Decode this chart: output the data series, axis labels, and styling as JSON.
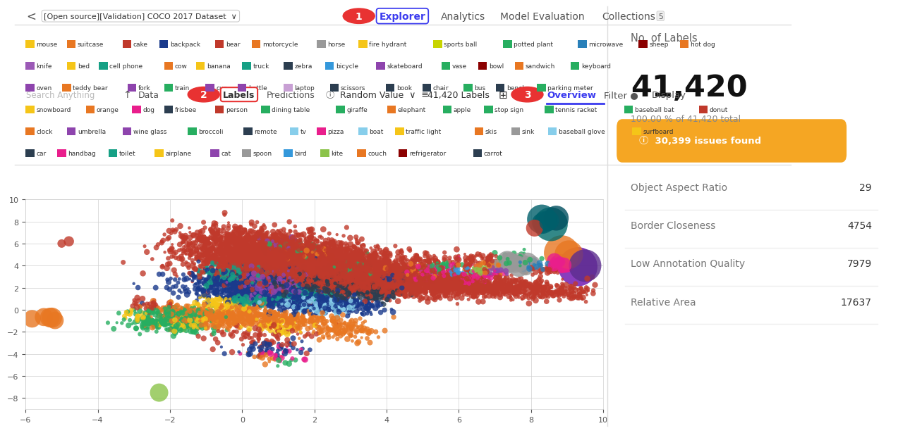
{
  "categories": [
    {
      "name": "mouse",
      "color": "#f5c518"
    },
    {
      "name": "suitcase",
      "color": "#e87722"
    },
    {
      "name": "cake",
      "color": "#c0392b"
    },
    {
      "name": "backpack",
      "color": "#1a3a8c"
    },
    {
      "name": "bear",
      "color": "#c0392b"
    },
    {
      "name": "motorcycle",
      "color": "#e87722"
    },
    {
      "name": "horse",
      "color": "#999999"
    },
    {
      "name": "fire hydrant",
      "color": "#f5c518"
    },
    {
      "name": "sports ball",
      "color": "#c8d400"
    },
    {
      "name": "potted plant",
      "color": "#27ae60"
    },
    {
      "name": "microwave",
      "color": "#2980b9"
    },
    {
      "name": "sheep",
      "color": "#8B0000"
    },
    {
      "name": "hot dog",
      "color": "#e87722"
    },
    {
      "name": "knife",
      "color": "#9b59b6"
    },
    {
      "name": "bed",
      "color": "#f5c518"
    },
    {
      "name": "cell phone",
      "color": "#16a085"
    },
    {
      "name": "cow",
      "color": "#e87722"
    },
    {
      "name": "banana",
      "color": "#f5c518"
    },
    {
      "name": "truck",
      "color": "#16a085"
    },
    {
      "name": "zebra",
      "color": "#2c3e50"
    },
    {
      "name": "bicycle",
      "color": "#3498db"
    },
    {
      "name": "skateboard",
      "color": "#8e44ad"
    },
    {
      "name": "vase",
      "color": "#27ae60"
    },
    {
      "name": "bowl",
      "color": "#8B0000"
    },
    {
      "name": "sandwich",
      "color": "#e87722"
    },
    {
      "name": "keyboard",
      "color": "#27ae60"
    },
    {
      "name": "oven",
      "color": "#8e44ad"
    },
    {
      "name": "teddy bear",
      "color": "#e87722"
    },
    {
      "name": "fork",
      "color": "#8e44ad"
    },
    {
      "name": "train",
      "color": "#27ae60"
    },
    {
      "name": "cup",
      "color": "#8e44ad"
    },
    {
      "name": "bottle",
      "color": "#8e44ad"
    },
    {
      "name": "laptop",
      "color": "#c8a0d4"
    },
    {
      "name": "scissors",
      "color": "#2c3e50"
    },
    {
      "name": "book",
      "color": "#2c3e50"
    },
    {
      "name": "chair",
      "color": "#2c3e50"
    },
    {
      "name": "bus",
      "color": "#27ae60"
    },
    {
      "name": "bench",
      "color": "#2c3e50"
    },
    {
      "name": "parking meter",
      "color": "#27ae60"
    },
    {
      "name": "snowboard",
      "color": "#f5c518"
    },
    {
      "name": "orange",
      "color": "#e87722"
    },
    {
      "name": "dog",
      "color": "#e91e8c"
    },
    {
      "name": "frisbee",
      "color": "#2c3e50"
    },
    {
      "name": "person",
      "color": "#c0392b"
    },
    {
      "name": "dining table",
      "color": "#27ae60"
    },
    {
      "name": "giraffe",
      "color": "#27ae60"
    },
    {
      "name": "elephant",
      "color": "#e87722"
    },
    {
      "name": "apple",
      "color": "#27ae60"
    },
    {
      "name": "stop sign",
      "color": "#27ae60"
    },
    {
      "name": "tennis racket",
      "color": "#27ae60"
    },
    {
      "name": "baseball bat",
      "color": "#27ae60"
    },
    {
      "name": "donut",
      "color": "#c0392b"
    },
    {
      "name": "clock",
      "color": "#e87722"
    },
    {
      "name": "umbrella",
      "color": "#8e44ad"
    },
    {
      "name": "wine glass",
      "color": "#8e44ad"
    },
    {
      "name": "broccoli",
      "color": "#27ae60"
    },
    {
      "name": "remote",
      "color": "#2c3e50"
    },
    {
      "name": "tv",
      "color": "#87ceeb"
    },
    {
      "name": "pizza",
      "color": "#e91e8c"
    },
    {
      "name": "boat",
      "color": "#87ceeb"
    },
    {
      "name": "traffic light",
      "color": "#f5c518"
    },
    {
      "name": "skis",
      "color": "#e87722"
    },
    {
      "name": "sink",
      "color": "#999999"
    },
    {
      "name": "baseball glove",
      "color": "#87ceeb"
    },
    {
      "name": "surfboard",
      "color": "#f5c518"
    },
    {
      "name": "car",
      "color": "#2c3e50"
    },
    {
      "name": "handbag",
      "color": "#e91e8c"
    },
    {
      "name": "toilet",
      "color": "#16a085"
    },
    {
      "name": "airplane",
      "color": "#f5c518"
    },
    {
      "name": "cat",
      "color": "#8e44ad"
    },
    {
      "name": "spoon",
      "color": "#999999"
    },
    {
      "name": "bird",
      "color": "#3498db"
    },
    {
      "name": "kite",
      "color": "#8bc34a"
    },
    {
      "name": "couch",
      "color": "#e87722"
    },
    {
      "name": "refrigerator",
      "color": "#8B0000"
    },
    {
      "name": "carrot",
      "color": "#2c3e50"
    }
  ],
  "xlim": [
    -6,
    10
  ],
  "ylim": [
    -9,
    10
  ],
  "xticks": [
    -6,
    -4,
    -2,
    0,
    2,
    4,
    6,
    8,
    10
  ],
  "yticks": [
    -8,
    -6,
    -4,
    -2,
    0,
    2,
    4,
    6,
    8,
    10
  ],
  "side_panel": {
    "no_labels_title": "No. of Labels",
    "count": "41,420",
    "percent": "100.00 % of 41,420 total",
    "issues": "30,399 issues found",
    "issues_bg": "#f5a623",
    "metrics": [
      {
        "label": "Object Aspect Ratio",
        "value": "29"
      },
      {
        "label": "Border Closeness",
        "value": "4754"
      },
      {
        "label": "Low Annotation Quality",
        "value": "7979"
      },
      {
        "label": "Relative Area",
        "value": "17637"
      }
    ]
  },
  "nav": {
    "back": "<",
    "dataset": "[Open source][Validation] COCO 2017 Dataset",
    "tabs": [
      "Explorer",
      "Analytics",
      "Model Evaluation",
      "Collections 5"
    ],
    "active_tab": "Explorer"
  },
  "toolbar": {
    "search": "Search Anything",
    "data_tabs": [
      "Data",
      "Labels",
      "Predictions"
    ],
    "active_data_tab": "Labels",
    "filter": "Random Value",
    "count": "41,420 Labels",
    "right_tabs": [
      "Overview",
      "Filter ●",
      "Display"
    ],
    "active_right_tab": "Overview"
  }
}
